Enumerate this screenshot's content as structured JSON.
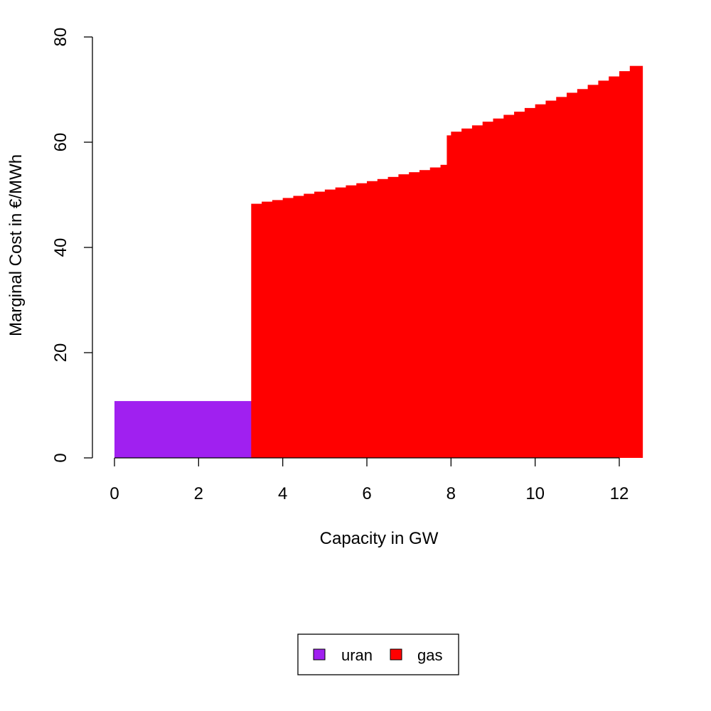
{
  "chart_data": {
    "type": "bar",
    "title": "",
    "xlabel": "Capacity in GW",
    "ylabel": "Marginal Cost in €/MWh",
    "xlim": [
      -0.5,
      12.6
    ],
    "ylim": [
      0,
      80
    ],
    "xticks": [
      "0",
      "2",
      "4",
      "6",
      "8",
      "10",
      "12"
    ],
    "yticks": [
      "0",
      "20",
      "40",
      "60",
      "80"
    ],
    "grid": false,
    "legend_position": "bottom-center",
    "series": [
      {
        "name": "uran",
        "color": "#A020F0",
        "segments": [
          {
            "x0": 0.0,
            "x1": 3.25,
            "y": 10.8
          }
        ]
      },
      {
        "name": "gas",
        "color": "#FF0000",
        "segments": [
          {
            "x0": 3.25,
            "x1": 3.5,
            "y": 48.3
          },
          {
            "x0": 3.5,
            "x1": 3.75,
            "y": 48.7
          },
          {
            "x0": 3.75,
            "x1": 4.0,
            "y": 49.0
          },
          {
            "x0": 4.0,
            "x1": 4.25,
            "y": 49.4
          },
          {
            "x0": 4.25,
            "x1": 4.5,
            "y": 49.8
          },
          {
            "x0": 4.5,
            "x1": 4.75,
            "y": 50.2
          },
          {
            "x0": 4.75,
            "x1": 5.0,
            "y": 50.6
          },
          {
            "x0": 5.0,
            "x1": 5.25,
            "y": 51.0
          },
          {
            "x0": 5.25,
            "x1": 5.5,
            "y": 51.4
          },
          {
            "x0": 5.5,
            "x1": 5.75,
            "y": 51.8
          },
          {
            "x0": 5.75,
            "x1": 6.0,
            "y": 52.2
          },
          {
            "x0": 6.0,
            "x1": 6.25,
            "y": 52.6
          },
          {
            "x0": 6.25,
            "x1": 6.5,
            "y": 53.0
          },
          {
            "x0": 6.5,
            "x1": 6.75,
            "y": 53.4
          },
          {
            "x0": 6.75,
            "x1": 7.0,
            "y": 53.9
          },
          {
            "x0": 7.0,
            "x1": 7.25,
            "y": 54.3
          },
          {
            "x0": 7.25,
            "x1": 7.5,
            "y": 54.7
          },
          {
            "x0": 7.5,
            "x1": 7.75,
            "y": 55.2
          },
          {
            "x0": 7.75,
            "x1": 7.9,
            "y": 55.7
          },
          {
            "x0": 7.9,
            "x1": 8.0,
            "y": 61.3
          },
          {
            "x0": 8.0,
            "x1": 8.25,
            "y": 62.0
          },
          {
            "x0": 8.25,
            "x1": 8.5,
            "y": 62.6
          },
          {
            "x0": 8.5,
            "x1": 8.75,
            "y": 63.2
          },
          {
            "x0": 8.75,
            "x1": 9.0,
            "y": 63.9
          },
          {
            "x0": 9.0,
            "x1": 9.25,
            "y": 64.5
          },
          {
            "x0": 9.25,
            "x1": 9.5,
            "y": 65.2
          },
          {
            "x0": 9.5,
            "x1": 9.75,
            "y": 65.8
          },
          {
            "x0": 9.75,
            "x1": 10.0,
            "y": 66.5
          },
          {
            "x0": 10.0,
            "x1": 10.25,
            "y": 67.2
          },
          {
            "x0": 10.25,
            "x1": 10.5,
            "y": 67.9
          },
          {
            "x0": 10.5,
            "x1": 10.75,
            "y": 68.6
          },
          {
            "x0": 10.75,
            "x1": 11.0,
            "y": 69.4
          },
          {
            "x0": 11.0,
            "x1": 11.25,
            "y": 70.1
          },
          {
            "x0": 11.25,
            "x1": 11.5,
            "y": 70.9
          },
          {
            "x0": 11.5,
            "x1": 11.75,
            "y": 71.7
          },
          {
            "x0": 11.75,
            "x1": 12.0,
            "y": 72.5
          },
          {
            "x0": 12.0,
            "x1": 12.25,
            "y": 73.5
          },
          {
            "x0": 12.25,
            "x1": 12.55,
            "y": 74.5
          }
        ]
      }
    ]
  }
}
